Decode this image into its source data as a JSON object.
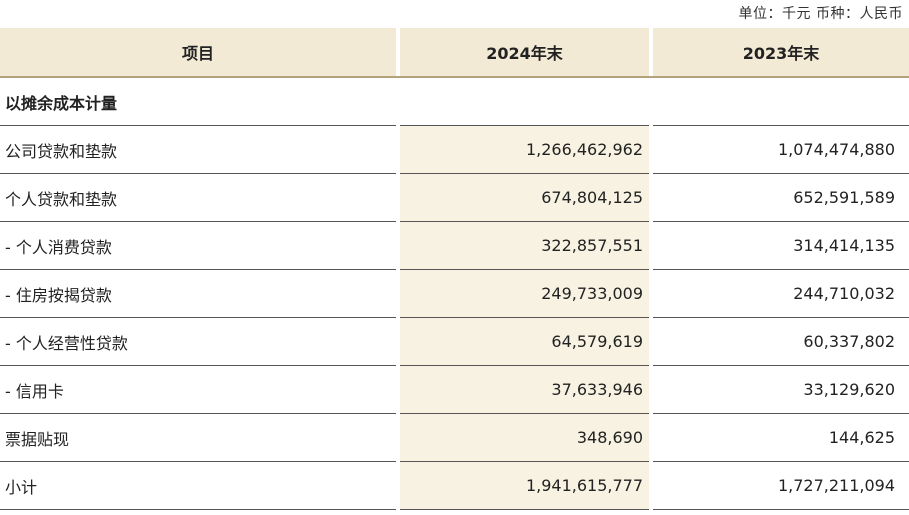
{
  "unit_note": "单位：千元 币种：人民币",
  "header": {
    "col_item": "项目",
    "col_2024": "2024年末",
    "col_2023": "2023年末"
  },
  "section_title": "以摊余成本计量",
  "rows": [
    {
      "item": "公司贷款和垫款",
      "y2024": "1,266,462,962",
      "y2023": "1,074,474,880"
    },
    {
      "item": "个人贷款和垫款",
      "y2024": "674,804,125",
      "y2023": "652,591,589"
    },
    {
      "item": "- 个人消费贷款",
      "y2024": "322,857,551",
      "y2023": "314,414,135"
    },
    {
      "item": "- 住房按揭贷款",
      "y2024": "249,733,009",
      "y2023": "244,710,032"
    },
    {
      "item": "- 个人经营性贷款",
      "y2024": "64,579,619",
      "y2023": "60,337,802"
    },
    {
      "item": "- 信用卡",
      "y2024": "37,633,946",
      "y2023": "33,129,620"
    },
    {
      "item": "票据贴现",
      "y2024": "348,690",
      "y2023": "144,625"
    },
    {
      "item": "小计",
      "y2024": "1,941,615,777",
      "y2023": "1,727,211,094"
    }
  ]
}
